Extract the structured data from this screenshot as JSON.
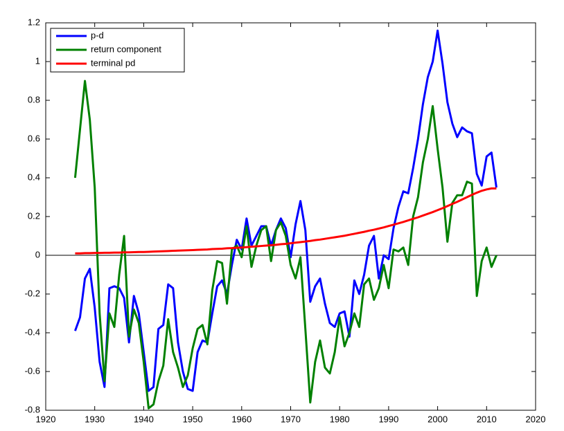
{
  "chart_data": {
    "type": "line",
    "x": [
      1926,
      1927,
      1928,
      1929,
      1930,
      1931,
      1932,
      1933,
      1934,
      1935,
      1936,
      1937,
      1938,
      1939,
      1940,
      1941,
      1942,
      1943,
      1944,
      1945,
      1946,
      1947,
      1948,
      1949,
      1950,
      1951,
      1952,
      1953,
      1954,
      1955,
      1956,
      1957,
      1958,
      1959,
      1960,
      1961,
      1962,
      1963,
      1964,
      1965,
      1966,
      1967,
      1968,
      1969,
      1970,
      1971,
      1972,
      1973,
      1974,
      1975,
      1976,
      1977,
      1978,
      1979,
      1980,
      1981,
      1982,
      1983,
      1984,
      1985,
      1986,
      1987,
      1988,
      1989,
      1990,
      1991,
      1992,
      1993,
      1994,
      1995,
      1996,
      1997,
      1998,
      1999,
      2000,
      2001,
      2002,
      2003,
      2004,
      2005,
      2006,
      2007,
      2008,
      2009,
      2010,
      2011,
      2012
    ],
    "series": [
      {
        "name": "p-d",
        "color": "#0000ff",
        "values": [
          -0.39,
          -0.32,
          -0.12,
          -0.07,
          -0.27,
          -0.55,
          -0.68,
          -0.17,
          -0.16,
          -0.17,
          -0.22,
          -0.45,
          -0.21,
          -0.3,
          -0.5,
          -0.7,
          -0.68,
          -0.38,
          -0.36,
          -0.15,
          -0.17,
          -0.45,
          -0.6,
          -0.69,
          -0.7,
          -0.5,
          -0.44,
          -0.45,
          -0.3,
          -0.16,
          -0.13,
          -0.2,
          -0.05,
          0.08,
          0.03,
          0.19,
          0.05,
          0.1,
          0.15,
          0.15,
          0.05,
          0.13,
          0.19,
          0.14,
          -0.01,
          0.16,
          0.28,
          0.13,
          -0.24,
          -0.16,
          -0.12,
          -0.25,
          -0.35,
          -0.37,
          -0.3,
          -0.29,
          -0.42,
          -0.13,
          -0.2,
          -0.1,
          0.05,
          0.1,
          -0.12,
          0.0,
          -0.02,
          0.14,
          0.25,
          0.33,
          0.32,
          0.45,
          0.6,
          0.78,
          0.92,
          1.0,
          1.16,
          0.99,
          0.79,
          0.68,
          0.61,
          0.66,
          0.64,
          0.63,
          0.42,
          0.36,
          0.51,
          0.53,
          0.35
        ]
      },
      {
        "name": "return component",
        "color": "#008000",
        "values": [
          0.4,
          0.65,
          0.9,
          0.7,
          0.35,
          -0.3,
          -0.65,
          -0.3,
          -0.37,
          -0.1,
          0.1,
          -0.42,
          -0.28,
          -0.35,
          -0.55,
          -0.79,
          -0.77,
          -0.65,
          -0.57,
          -0.33,
          -0.5,
          -0.58,
          -0.68,
          -0.62,
          -0.48,
          -0.38,
          -0.36,
          -0.46,
          -0.18,
          -0.03,
          -0.04,
          -0.25,
          0.03,
          0.05,
          -0.01,
          0.15,
          -0.06,
          0.05,
          0.13,
          0.15,
          -0.03,
          0.13,
          0.17,
          0.1,
          -0.05,
          -0.12,
          -0.01,
          -0.38,
          -0.76,
          -0.55,
          -0.44,
          -0.58,
          -0.61,
          -0.5,
          -0.32,
          -0.47,
          -0.4,
          -0.3,
          -0.37,
          -0.15,
          -0.12,
          -0.23,
          -0.17,
          -0.05,
          -0.17,
          0.03,
          0.02,
          0.04,
          -0.05,
          0.2,
          0.3,
          0.48,
          0.6,
          0.77,
          0.55,
          0.35,
          0.07,
          0.27,
          0.31,
          0.31,
          0.38,
          0.37,
          -0.21,
          -0.03,
          0.04,
          -0.06,
          0.0
        ]
      },
      {
        "name": "terminal pd",
        "color": "#ff0000",
        "values": [
          0.01,
          0.01,
          0.011,
          0.011,
          0.012,
          0.012,
          0.013,
          0.013,
          0.014,
          0.014,
          0.015,
          0.015,
          0.016,
          0.017,
          0.017,
          0.018,
          0.019,
          0.02,
          0.021,
          0.022,
          0.023,
          0.024,
          0.025,
          0.026,
          0.027,
          0.028,
          0.029,
          0.03,
          0.032,
          0.033,
          0.034,
          0.036,
          0.037,
          0.039,
          0.04,
          0.042,
          0.044,
          0.046,
          0.048,
          0.05,
          0.052,
          0.054,
          0.057,
          0.059,
          0.062,
          0.065,
          0.068,
          0.071,
          0.074,
          0.078,
          0.081,
          0.085,
          0.089,
          0.093,
          0.097,
          0.101,
          0.106,
          0.111,
          0.116,
          0.121,
          0.127,
          0.132,
          0.138,
          0.144,
          0.151,
          0.158,
          0.165,
          0.172,
          0.18,
          0.188,
          0.196,
          0.205,
          0.214,
          0.223,
          0.233,
          0.243,
          0.254,
          0.265,
          0.276,
          0.288,
          0.3,
          0.312,
          0.323,
          0.333,
          0.34,
          0.345,
          0.345
        ]
      }
    ],
    "xlim": [
      1920,
      2020
    ],
    "xticks": [
      1920,
      1930,
      1940,
      1950,
      1960,
      1970,
      1980,
      1990,
      2000,
      2010,
      2020
    ],
    "ylim": [
      -0.8,
      1.2
    ],
    "yticks": [
      -0.8,
      -0.6,
      -0.4,
      -0.2,
      0,
      0.2,
      0.4,
      0.6,
      0.8,
      1,
      1.2
    ],
    "zero_line": true,
    "legend": "upper left"
  }
}
